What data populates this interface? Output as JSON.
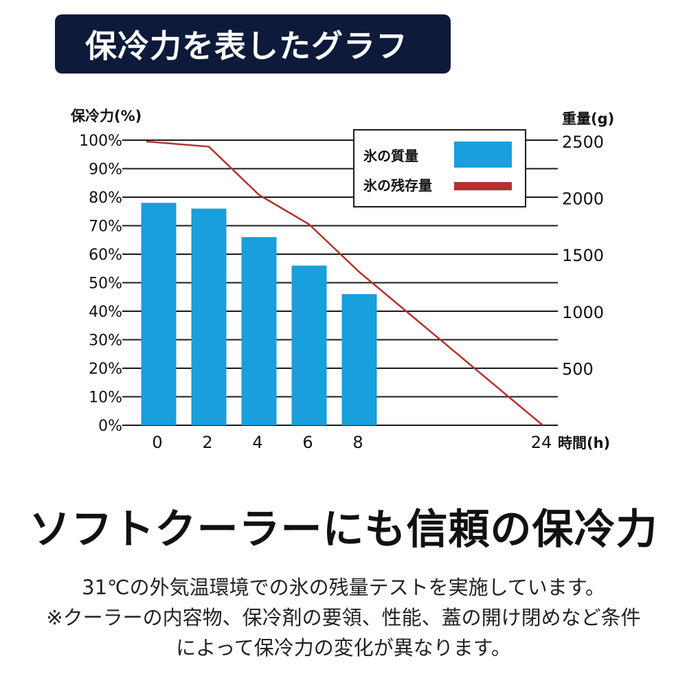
{
  "header": {
    "title": "保冷力を表したグラフ"
  },
  "chart_data": {
    "type": "bar",
    "y_left_label": "保冷力(%)",
    "y_right_label": "重量(g)",
    "x_label": "時間(h)",
    "y_left_ticks": [
      "0%",
      "10%",
      "20%",
      "30%",
      "40%",
      "50%",
      "60%",
      "70%",
      "80%",
      "90%",
      "100%"
    ],
    "y_right_ticks": [
      "500",
      "1000",
      "1500",
      "2000",
      "2500"
    ],
    "y_left_range": [
      0,
      100
    ],
    "y_right_range": [
      0,
      2500
    ],
    "grid": true,
    "legend_position": "top-right",
    "categories": [
      "0",
      "2",
      "4",
      "6",
      "8",
      "24"
    ],
    "series": [
      {
        "name": "氷の質量",
        "kind": "bar",
        "axis": "left",
        "color": "#189fdc",
        "x": [
          0,
          2,
          4,
          6,
          8
        ],
        "values": [
          78,
          76,
          66,
          56,
          46
        ]
      },
      {
        "name": "氷の残存量",
        "kind": "line",
        "axis": "right",
        "color": "#b3302e",
        "x": [
          0,
          2,
          4,
          6,
          8,
          24
        ],
        "values": [
          2500,
          2455,
          2030,
          1770,
          1350,
          0
        ]
      }
    ]
  },
  "footer": {
    "headline": "ソフトクーラーにも信頼の保冷力",
    "note_line1": "31℃の外気温環境での氷の残量テストを実施しています。",
    "note_line2": "※クーラーの内容物、保冷剤の要領、性能、蓋の開け閉めなど条件",
    "note_line3": "によって保冷力の変化が異なります。"
  }
}
